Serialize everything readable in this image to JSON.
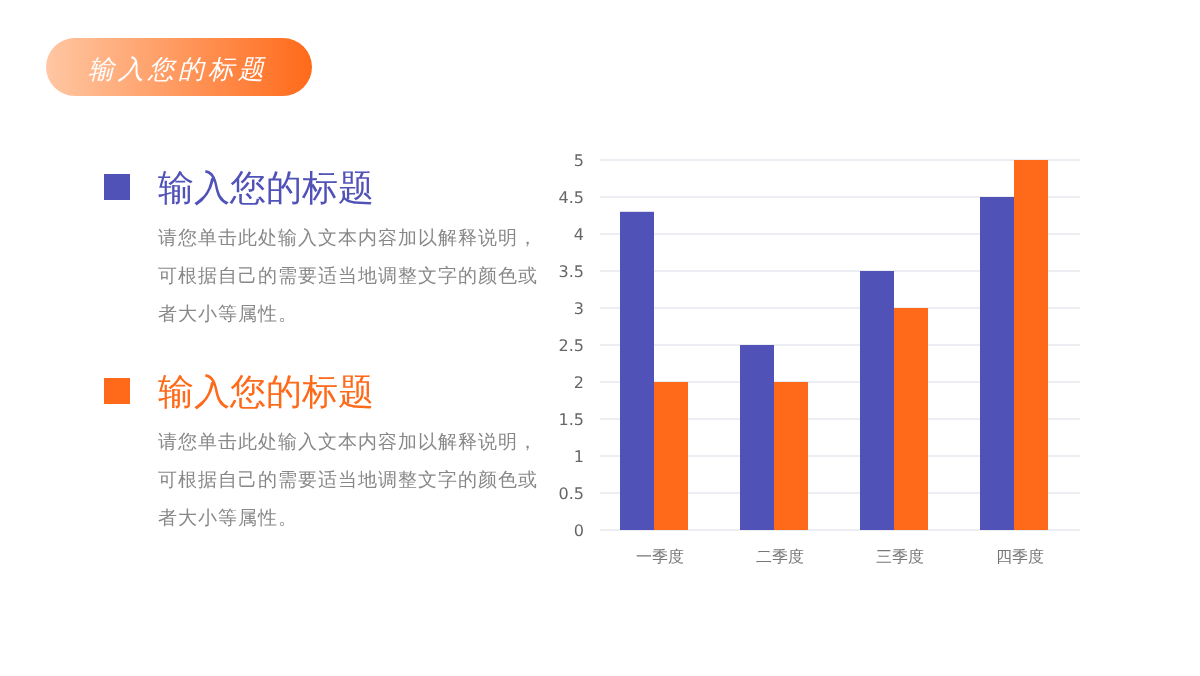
{
  "chart_data": {
    "type": "bar",
    "title": "输入您的标题",
    "categories": [
      "一季度",
      "二季度",
      "三季度",
      "四季度"
    ],
    "series": [
      {
        "name": "输入您的标题",
        "color": "#5152b8",
        "values": [
          4.3,
          2.5,
          3.5,
          4.5
        ]
      },
      {
        "name": "输入您的标题",
        "color": "#ff6a1a",
        "values": [
          2,
          2,
          3,
          5
        ]
      }
    ],
    "ylim": [
      0,
      5
    ],
    "yticks": [
      0,
      0.5,
      1,
      1.5,
      2,
      2.5,
      3,
      3.5,
      4,
      4.5,
      5
    ],
    "grid": "y",
    "legend": "left",
    "annotations": [
      "请您单击此处输入文本内容加以解释说明，可根据自己的需要适当地调整文字的颜色或者大小等属性。",
      "请您单击此处输入文本内容加以解释说明，可根据自己的需要适当地调整文字的颜色或者大小等属性。"
    ]
  }
}
